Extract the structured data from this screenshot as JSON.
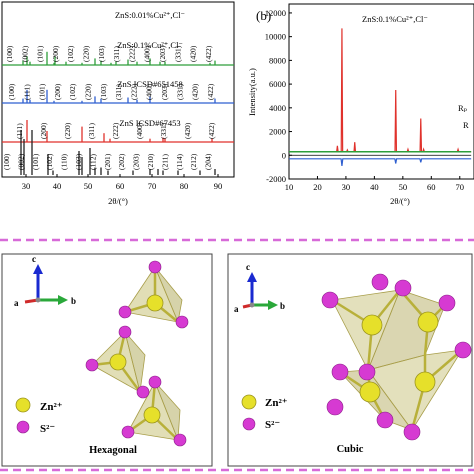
{
  "panel_a": {
    "x_axis_label": "2θ/(°)",
    "x_ticks": [
      "30",
      "40",
      "50",
      "60",
      "70",
      "80",
      "90"
    ],
    "traces": [
      {
        "label": "ZnS:0.01%Cu²⁺,Cl⁻",
        "color": "#2e9e3a",
        "peaks": [
          "(100)",
          "(002)",
          "(101)",
          "(200)",
          "(102)",
          "(220)",
          "(103)",
          "(311)",
          "(222)",
          "(400)",
          "(203)",
          "(331)",
          "(420)",
          "(422)"
        ]
      },
      {
        "label": "ZnS:0.1%Cu²⁺,Cl⁻",
        "color": "#2f5fd0",
        "peaks": [
          "(100)",
          "(111)",
          "(101)",
          "(200)",
          "(102)",
          "(220)",
          "(103)",
          "(311)",
          "(222)",
          "(400)",
          "(203)",
          "(331)",
          "(420)",
          "(422)"
        ]
      },
      {
        "label": "ZnS ICSD#651458",
        "color": "#e0322c",
        "peaks": [
          "(111)",
          "(200)",
          "(220)",
          "(311)",
          "(222)",
          "(400)",
          "(331)",
          "(420)",
          "(422)"
        ]
      },
      {
        "label": "ZnS ICSD#67453",
        "color": "#222222",
        "peaks": [
          "(100)",
          "(002)",
          "(101)",
          "(102)",
          "(110)",
          "(103)",
          "(112)",
          "(201)",
          "(202)",
          "(203)",
          "(210)",
          "(211)",
          "(114)",
          "(212)",
          "(204)"
        ]
      }
    ]
  },
  "panel_b": {
    "tag": "(b)",
    "sample_label": "ZnS:0.1%Cu²⁺,Cl⁻",
    "y_axis_label": "Intensity(a.u.)",
    "x_axis_label": "2θ/(°)",
    "y_ticks": [
      "12000",
      "10000",
      "8000",
      "6000",
      "4000",
      "2000",
      "0",
      "-2000"
    ],
    "x_ticks": [
      "10",
      "20",
      "30",
      "40",
      "50",
      "60",
      "70"
    ],
    "side_text": [
      "Rₚ",
      "R"
    ],
    "colors": {
      "observed": "#e0322c",
      "calculated": "#2e9e3a",
      "difference": "#2f5fd0",
      "background": "#000000"
    }
  },
  "crystal_panels": [
    {
      "caption": "Hexagonal",
      "axes": [
        "c",
        "a",
        "b"
      ],
      "legend": [
        "Zn²⁺",
        "S²⁻"
      ]
    },
    {
      "caption": "Cubic",
      "axes": [
        "c",
        "a",
        "b"
      ],
      "legend": [
        "Zn²⁺",
        "S²⁻"
      ]
    }
  ],
  "colors": {
    "zn_atom": "#e6e02a",
    "s_atom": "#d63ad2",
    "divider": "#d76ad8",
    "polyhedron": "#c8c27a"
  }
}
